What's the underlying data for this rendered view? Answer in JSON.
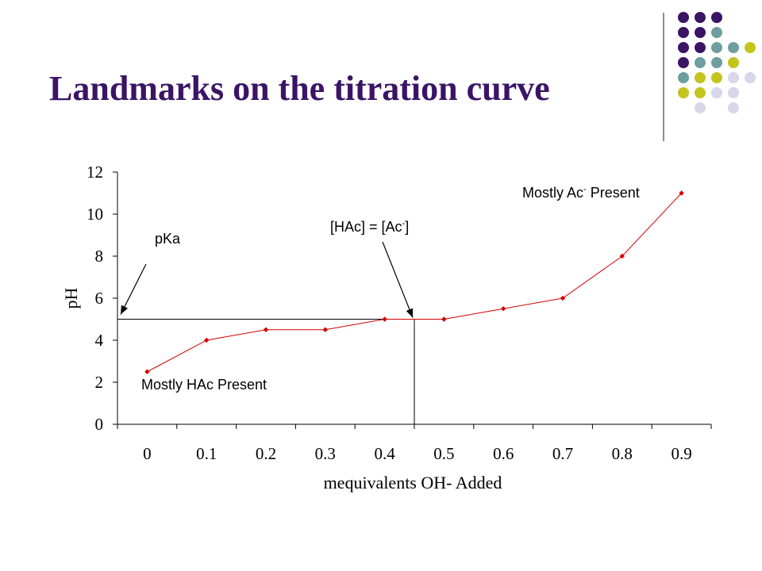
{
  "slide": {
    "title": "Landmarks on the titration curve"
  },
  "decor": {
    "dot_colors": [
      "#3b1466",
      "#6e9e9e",
      "#c4c41e",
      "#d7d7ea"
    ],
    "rule_color": "#8c8c8c"
  },
  "chart_data": {
    "type": "line",
    "title": "",
    "xlabel": "mequivalents OH- Added",
    "ylabel": "pH",
    "categories": [
      "0",
      "0.1",
      "0.2",
      "0.3",
      "0.4",
      "0.5",
      "0.6",
      "0.7",
      "0.8",
      "0.9"
    ],
    "y_ticks": [
      "0",
      "2",
      "4",
      "6",
      "8",
      "10",
      "12"
    ],
    "ylim": [
      0,
      12
    ],
    "xlim": [
      0,
      1.0
    ],
    "x_tick_values": [
      0,
      0.1,
      0.2,
      0.3,
      0.4,
      0.5,
      0.6,
      0.7,
      0.8,
      0.9
    ],
    "grid": false,
    "legend": "none",
    "series": [
      {
        "x": [
          0.05,
          0.15,
          0.25,
          0.35,
          0.45,
          0.55,
          0.65,
          0.75,
          0.85,
          0.95
        ],
        "values": [
          2.5,
          4.0,
          4.5,
          4.5,
          5.0,
          5.0,
          5.5,
          6.0,
          8.0,
          11.0
        ],
        "color": "#d40000"
      }
    ],
    "reference_lines": {
      "horizontal_y": 5.0,
      "vertical_x": 0.5
    },
    "annotations": {
      "pka": "pKa",
      "half_equivalence_main": "[HAc] = [Ac",
      "half_equivalence_sup": "-",
      "half_equivalence_end": "]",
      "mostly_ac_main": "Mostly Ac",
      "mostly_ac_sup": "-",
      "mostly_ac_end": " Present",
      "mostly_hac": "Mostly HAc Present"
    }
  }
}
